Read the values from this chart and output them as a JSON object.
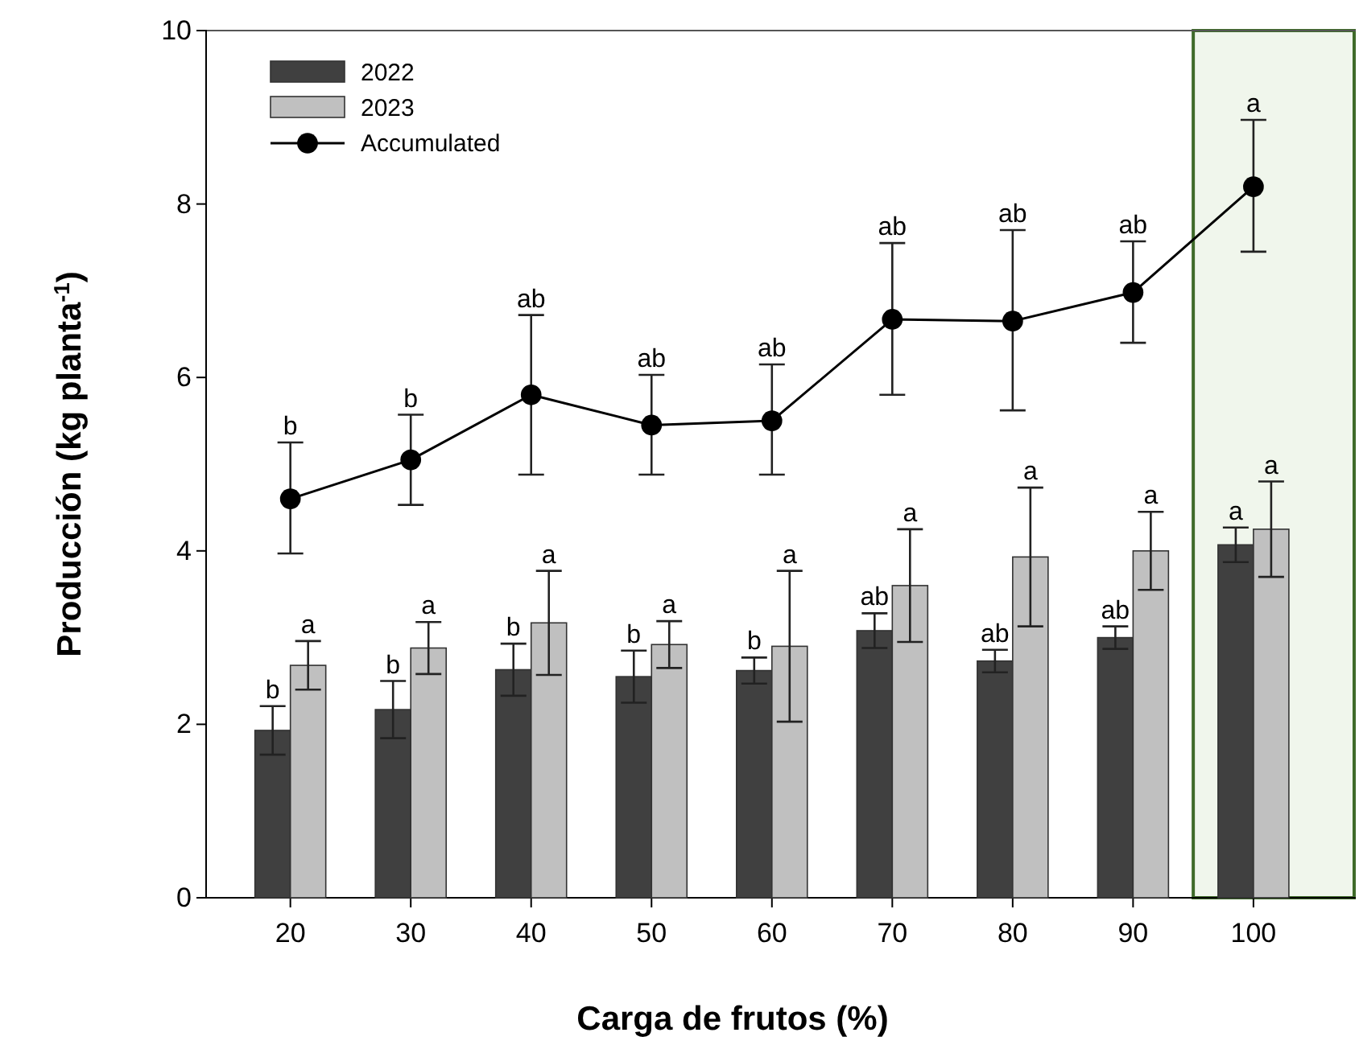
{
  "chart_data": {
    "type": "bar",
    "xlabel": "Carga de frutos (%)",
    "ylabel": "Producción (kg planta$^{-1}$)",
    "categories": [
      "20",
      "30",
      "40",
      "50",
      "60",
      "70",
      "80",
      "90",
      "100"
    ],
    "ylim": [
      0,
      10
    ],
    "yticks": [
      0,
      2,
      4,
      6,
      8,
      10
    ],
    "legend": "top left",
    "grid": false,
    "series": [
      {
        "name": "2022",
        "color": "#404040",
        "values": [
          1.93,
          2.17,
          2.63,
          2.55,
          2.62,
          3.08,
          2.73,
          3.0,
          4.07
        ],
        "errors": [
          0.28,
          0.33,
          0.3,
          0.3,
          0.15,
          0.2,
          0.13,
          0.13,
          0.2
        ],
        "value_labels": [
          "b",
          "b",
          "b",
          "b",
          "b",
          "ab",
          "ab",
          "ab",
          "a"
        ]
      },
      {
        "name": "2023",
        "color": "#c0c0c0",
        "values": [
          2.68,
          2.88,
          3.17,
          2.92,
          2.9,
          3.6,
          3.93,
          4.0,
          4.25
        ],
        "errors": [
          0.28,
          0.3,
          0.6,
          0.27,
          0.87,
          0.65,
          0.8,
          0.45,
          0.55
        ],
        "value_labels": [
          "a",
          "a",
          "a",
          "a",
          "a",
          "a",
          "a",
          "a",
          "a"
        ]
      },
      {
        "name": "Accumulated",
        "type": "line",
        "color": "#000000",
        "marker": "circle",
        "values": [
          4.6,
          5.05,
          5.8,
          5.45,
          5.5,
          6.67,
          6.65,
          6.98,
          8.2
        ],
        "errors": [
          [
            3.97,
            5.25
          ],
          [
            4.53,
            5.57
          ],
          [
            4.88,
            6.72
          ],
          [
            4.88,
            6.03
          ],
          [
            4.88,
            6.15
          ],
          [
            5.8,
            7.55
          ],
          [
            5.62,
            7.7
          ],
          [
            6.4,
            7.57
          ],
          [
            7.45,
            8.97
          ]
        ],
        "value_labels": [
          "b",
          "b",
          "ab",
          "ab",
          "ab",
          "ab",
          "ab",
          "ab",
          "a"
        ]
      }
    ]
  }
}
